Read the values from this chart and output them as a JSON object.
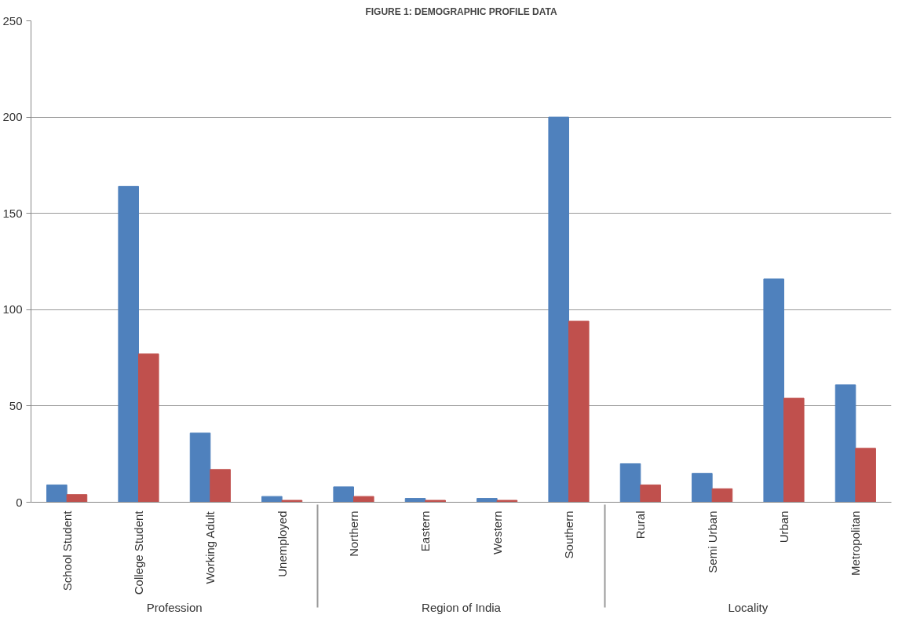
{
  "chart_data": {
    "type": "bar",
    "title": "FIGURE 1: DEMOGRAPHIC PROFILE DATA",
    "categories": [
      "School Student",
      "College Student",
      "Working Adult",
      "Unemployed",
      "Northern",
      "Eastern",
      "Western",
      "Southern",
      "Rural",
      "Semi Urban",
      "Urban",
      "Metropolitan"
    ],
    "annotations": [
      "Profession",
      "Region of India",
      "Locality"
    ],
    "series": [
      {
        "color": "#4f81bd",
        "values": [
          9,
          164,
          36,
          3,
          8,
          2,
          2,
          200,
          20,
          15,
          116,
          61
        ]
      },
      {
        "color": "#c0504d",
        "values": [
          4,
          77,
          17,
          1,
          3,
          1,
          1,
          94,
          9,
          7,
          54,
          28
        ]
      }
    ],
    "ylim": [
      0,
      250
    ],
    "yticks": [
      0,
      50,
      100,
      150,
      200,
      250
    ],
    "grid": "y"
  }
}
